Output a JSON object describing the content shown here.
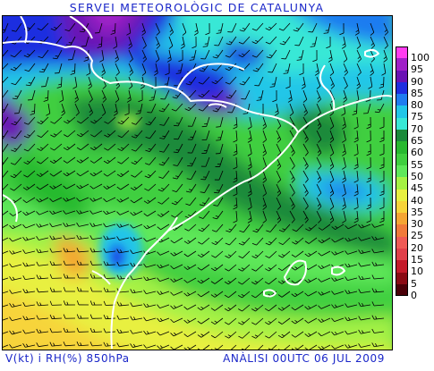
{
  "header": {
    "title": "SERVEI METEOROLÒGIC DE CATALUNYA"
  },
  "footer": {
    "variables": "V(kt) i RH(%) 850hPa",
    "analysis": "ANÀLISI 00UTC 06 JUL 2009"
  },
  "legend": {
    "unit": "RH(%)",
    "entries": [
      {
        "label": "100",
        "color": "#ff3df0"
      },
      {
        "label": "95",
        "color": "#a020c8"
      },
      {
        "label": "90",
        "color": "#6a12b4"
      },
      {
        "label": "85",
        "color": "#1f2de0"
      },
      {
        "label": "80",
        "color": "#1f7cf0"
      },
      {
        "label": "75",
        "color": "#21c6e8"
      },
      {
        "label": "70",
        "color": "#38e8d6"
      },
      {
        "label": "65",
        "color": "#1a8a3a"
      },
      {
        "label": "60",
        "color": "#27b92f"
      },
      {
        "label": "55",
        "color": "#3fcf3f"
      },
      {
        "label": "50",
        "color": "#5ee85a"
      },
      {
        "label": "45",
        "color": "#a5f244"
      },
      {
        "label": "40",
        "color": "#e8f040"
      },
      {
        "label": "35",
        "color": "#f7d43a"
      },
      {
        "label": "30",
        "color": "#f5a533"
      },
      {
        "label": "25",
        "color": "#f07a3a"
      },
      {
        "label": "20",
        "color": "#ef5a55"
      },
      {
        "label": "15",
        "color": "#e0404a"
      },
      {
        "label": "10",
        "color": "#c41a2a"
      },
      {
        "label": "5",
        "color": "#8a0a14"
      },
      {
        "label": "0",
        "color": "#4a0008"
      }
    ]
  },
  "map": {
    "coastline_color": "#ffffff",
    "barb_color": "#000000"
  }
}
